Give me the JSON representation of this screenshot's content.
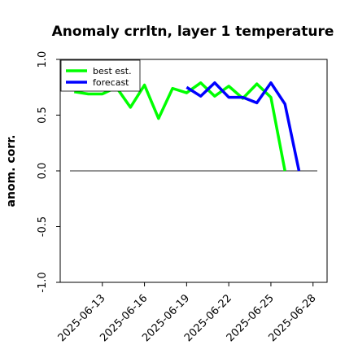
{
  "chart_data": {
    "type": "line",
    "title": "Anomaly crrltn, layer 1 temperature",
    "ylabel": "anom. corr.",
    "xlabel": "",
    "ylim": [
      -1.0,
      1.0
    ],
    "yticks": [
      "-1.0",
      "-0.5",
      "0.0",
      "0.5",
      "1.0"
    ],
    "xlim": [
      "2025-06-10",
      "2025-06-29"
    ],
    "xticks": [
      "2025-06-13",
      "2025-06-16",
      "2025-06-19",
      "2025-06-22",
      "2025-06-25",
      "2025-06-28"
    ],
    "highlighted_xtick": "2025-06-19",
    "highlight_color": "#228B22",
    "grid": false,
    "legend_position": "top-left",
    "reference_line": {
      "y": 0.0,
      "color": "#555555"
    },
    "series": [
      {
        "name": "best est.",
        "color": "#00ff00",
        "x": [
          "2025-06-11",
          "2025-06-12",
          "2025-06-13",
          "2025-06-14",
          "2025-06-15",
          "2025-06-16",
          "2025-06-17",
          "2025-06-18",
          "2025-06-19",
          "2025-06-20",
          "2025-06-21",
          "2025-06-22",
          "2025-06-23",
          "2025-06-24",
          "2025-06-25",
          "2025-06-26",
          "2025-06-27"
        ],
        "values": [
          0.71,
          0.69,
          0.69,
          0.75,
          0.57,
          0.77,
          0.47,
          0.74,
          0.7,
          0.79,
          0.67,
          0.76,
          0.65,
          0.78,
          0.66,
          0.0,
          null
        ]
      },
      {
        "name": "forecast",
        "color": "#0000ff",
        "x": [
          "2025-06-19",
          "2025-06-20",
          "2025-06-21",
          "2025-06-22",
          "2025-06-23",
          "2025-06-24",
          "2025-06-25",
          "2025-06-26",
          "2025-06-27"
        ],
        "values": [
          0.75,
          0.67,
          0.79,
          0.66,
          0.66,
          0.61,
          0.79,
          0.6,
          0.0
        ]
      }
    ]
  }
}
